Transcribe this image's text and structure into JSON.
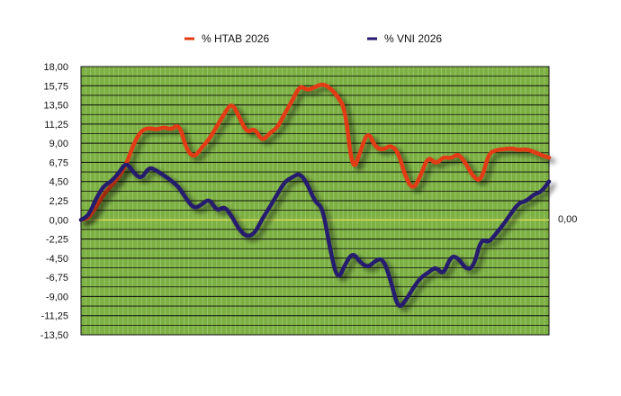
{
  "chart_data": {
    "type": "line",
    "ylim": [
      -13.5,
      18
    ],
    "yticks": [
      "18,00",
      "15,75",
      "13,50",
      "11,25",
      "9,00",
      "6,75",
      "4,50",
      "2,25",
      "0,00",
      "-2,25",
      "-4,50",
      "-6,75",
      "-9,00",
      "-11,25",
      "-13,50"
    ],
    "ytick_values": [
      18,
      15.75,
      13.5,
      11.25,
      9,
      6.75,
      4.5,
      2.25,
      0,
      -2.25,
      -4.5,
      -6.75,
      -9,
      -11.25,
      -13.5
    ],
    "zero_label": "0,00",
    "grid": true,
    "legend_position": "top",
    "background_color": "#7db043",
    "grid_color": "#0b0b0b",
    "zero_line_color": "#e8e35a",
    "series": [
      {
        "name": "% HTAB 2026",
        "color": "#e23a12",
        "values": [
          0,
          0.2,
          1.5,
          3.0,
          4.0,
          5.0,
          6.5,
          9.0,
          10.5,
          10.8,
          10.6,
          10.9,
          10.6,
          11.3,
          8.2,
          7.3,
          8.5,
          9.5,
          11.0,
          12.5,
          13.8,
          12.0,
          10.2,
          10.8,
          9.2,
          10.2,
          10.8,
          12.5,
          14.0,
          15.8,
          15.2,
          15.6,
          16.0,
          15.5,
          14.5,
          13.0,
          5.5,
          8.0,
          10.5,
          8.5,
          8.2,
          8.8,
          8.0,
          5.0,
          3.5,
          5.2,
          7.5,
          6.5,
          7.4,
          7.2,
          7.8,
          6.6,
          5.0,
          4.5,
          7.8,
          8.2,
          8.3,
          8.4,
          8.2,
          8.3,
          8.0,
          7.6,
          7.3
        ]
      },
      {
        "name": "% VNI 2026",
        "color": "#261a6e",
        "values": [
          0,
          0.5,
          2.5,
          4.0,
          4.5,
          5.5,
          6.8,
          5.5,
          4.8,
          6.2,
          5.8,
          5.2,
          4.6,
          3.8,
          2.4,
          1.3,
          1.8,
          2.5,
          1.0,
          1.6,
          0.4,
          -1.2,
          -2.0,
          -1.6,
          0.1,
          1.5,
          3.0,
          4.5,
          5.0,
          5.5,
          4.2,
          2.1,
          1.5,
          -3.5,
          -7.2,
          -5.2,
          -3.8,
          -5.0,
          -5.6,
          -4.8,
          -4.5,
          -7.0,
          -10.5,
          -9.5,
          -8.0,
          -6.8,
          -6.2,
          -5.5,
          -6.5,
          -4.2,
          -4.5,
          -5.8,
          -5.6,
          -2.2,
          -2.7,
          -1.6,
          -0.5,
          0.8,
          2.0,
          2.2,
          3.0,
          3.3,
          4.5
        ]
      }
    ]
  }
}
